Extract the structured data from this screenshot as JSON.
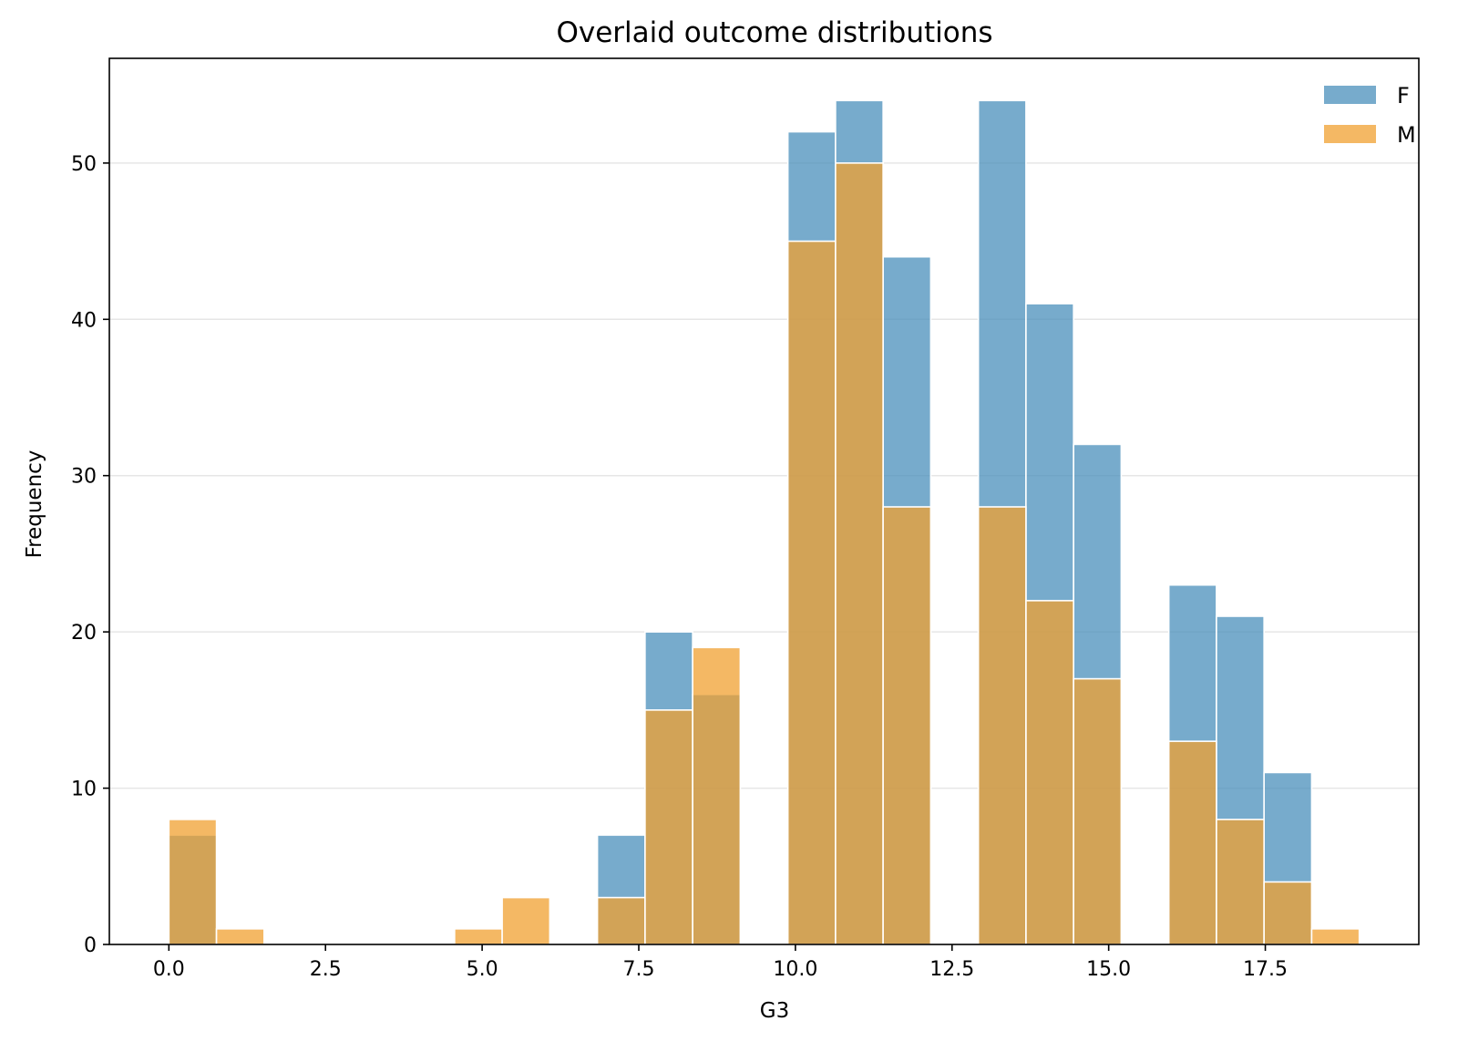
{
  "chart_data": {
    "type": "bar",
    "title": "Overlaid outcome distributions",
    "xlabel": "G3",
    "ylabel": "Frequency",
    "xlim": [
      -0.95,
      19.95
    ],
    "ylim": [
      0,
      56.7
    ],
    "xticks": [
      "0.0",
      "2.5",
      "5.0",
      "7.5",
      "10.0",
      "12.5",
      "15.0",
      "17.5"
    ],
    "xtick_values": [
      0,
      2.5,
      5,
      7.5,
      10,
      12.5,
      15,
      17.5
    ],
    "yticks": [
      "0",
      "10",
      "20",
      "30",
      "40",
      "50"
    ],
    "ytick_values": [
      0,
      10,
      20,
      30,
      40,
      50
    ],
    "grid": "horizontal",
    "legend_position": "top-right",
    "bin_edges": [
      0,
      0.76,
      1.52,
      2.28,
      3.04,
      3.8,
      4.56,
      5.32,
      6.08,
      6.84,
      7.6,
      8.36,
      9.12,
      9.88,
      10.64,
      11.4,
      12.16,
      12.92,
      13.68,
      14.44,
      15.2,
      15.96,
      16.72,
      17.48,
      18.24,
      19.0
    ],
    "series": [
      {
        "name": "F",
        "color": "#4a8fbb",
        "opacity": 0.75,
        "values": [
          7,
          0,
          0,
          0,
          0,
          0,
          0,
          0,
          0,
          7,
          20,
          16,
          0,
          52,
          54,
          44,
          0,
          54,
          41,
          32,
          0,
          23,
          21,
          11,
          0
        ]
      },
      {
        "name": "M",
        "color": "#f0a030",
        "opacity": 0.75,
        "values": [
          8,
          1,
          0,
          0,
          0,
          0,
          1,
          3,
          0,
          3,
          15,
          19,
          0,
          45,
          50,
          28,
          0,
          28,
          22,
          17,
          0,
          13,
          8,
          4,
          1
        ]
      }
    ]
  }
}
